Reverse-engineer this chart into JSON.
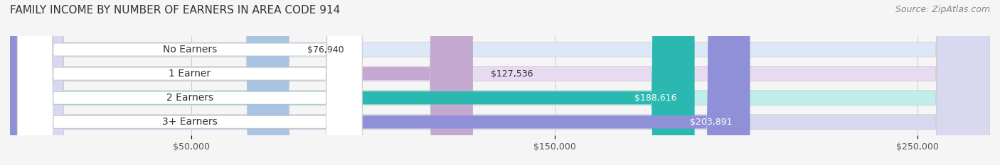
{
  "title": "FAMILY INCOME BY NUMBER OF EARNERS IN AREA CODE 914",
  "source": "Source: ZipAtlas.com",
  "categories": [
    "No Earners",
    "1 Earner",
    "2 Earners",
    "3+ Earners"
  ],
  "values": [
    76940,
    127536,
    188616,
    203891
  ],
  "value_labels": [
    "$76,940",
    "$127,536",
    "$188,616",
    "$203,891"
  ],
  "bar_colors": [
    "#a8c4e0",
    "#c4a8d0",
    "#2ab8b0",
    "#9090d8"
  ],
  "bar_bg_colors": [
    "#dce8f5",
    "#e8daf0",
    "#c0ecea",
    "#d8d8f0"
  ],
  "xmin": 0,
  "xmax": 270000,
  "xticks": [
    50000,
    150000,
    250000
  ],
  "xtick_labels": [
    "$50,000",
    "$150,000",
    "$250,000"
  ],
  "title_fontsize": 11,
  "source_fontsize": 9,
  "label_fontsize": 10,
  "value_fontsize": 9,
  "background_color": "#f5f5f5",
  "bar_height": 0.62,
  "label_bg_color": "#ffffff",
  "label_text_color": "#333333",
  "value_color_inside": "#ffffff",
  "value_color_outside": "#333333"
}
